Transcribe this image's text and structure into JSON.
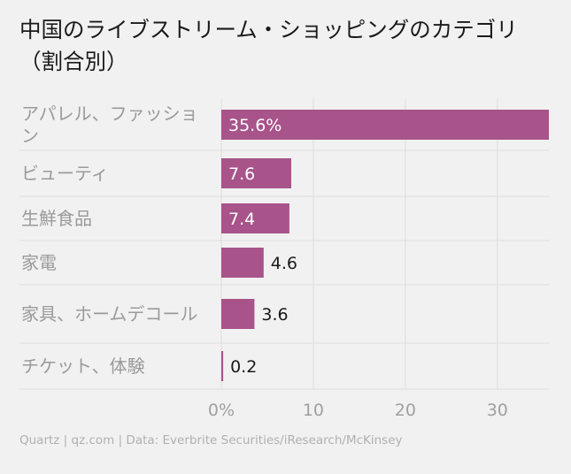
{
  "title": "中国のライブストリーム・ショッピングのカテゴリ（割合別）",
  "footer": "Quartz | qz.com | Data: Everbrite Securities/iResearch/McKinsey",
  "colors": {
    "bar": "#a8538a",
    "grid": "#dddddd",
    "category_text": "#9a9a9a",
    "tick_text": "#a0a0a0",
    "label_inside": "#ffffff",
    "label_outside": "#1a1a1a"
  },
  "chart_data": {
    "type": "bar",
    "orientation": "horizontal",
    "title": "中国のライブストリーム・ショッピングのカテゴリ（割合別）",
    "categories": [
      "アパレル、ファッション",
      "ビューティ",
      "生鮮食品",
      "家電",
      "家具、ホームデコール",
      "チケット、体験"
    ],
    "values": [
      35.6,
      7.6,
      7.4,
      4.6,
      3.6,
      0.2
    ],
    "data_labels": [
      "35.6%",
      "7.6",
      "7.4",
      "4.6",
      "3.6",
      "0.2"
    ],
    "xticks": [
      0,
      10,
      20,
      30
    ],
    "xtick_labels": [
      "0%",
      "10",
      "20",
      "30"
    ],
    "xlim": [
      0,
      35.6
    ],
    "grid": true
  }
}
